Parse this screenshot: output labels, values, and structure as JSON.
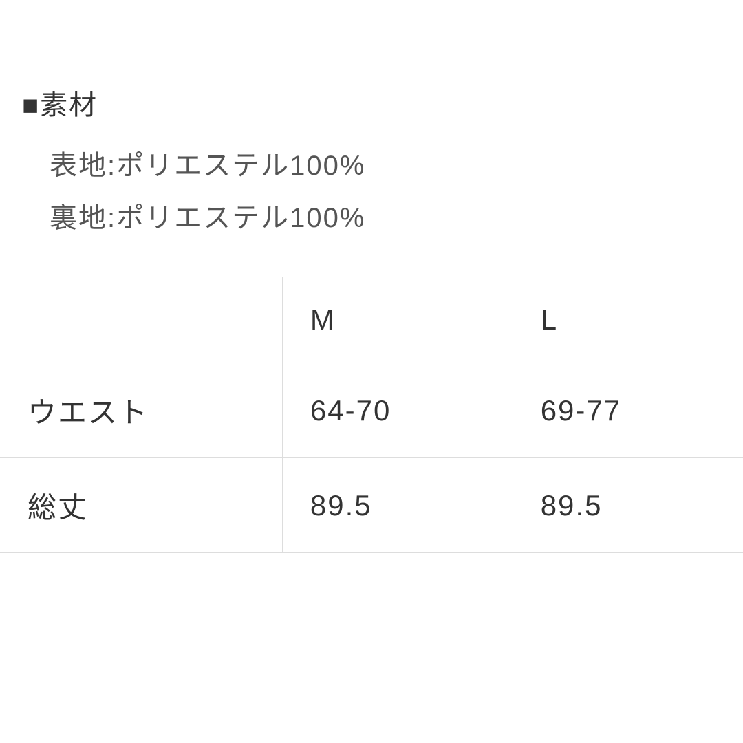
{
  "material": {
    "heading_prefix": "■",
    "heading_text": "素材",
    "lines": [
      "表地:ポリエステル100%",
      "裏地:ポリエステル100%"
    ]
  },
  "size_table": {
    "type": "table",
    "columns": [
      "",
      "M",
      "L"
    ],
    "rows": [
      {
        "label": "ウエスト",
        "values": [
          "64-70",
          "69-77"
        ]
      },
      {
        "label": "総丈",
        "values": [
          "89.5",
          "89.5"
        ]
      }
    ],
    "border_color": "#dddddd",
    "background_color": "#ffffff",
    "text_color": "#333333",
    "cell_fontsize": 42,
    "column_widths": [
      "38%",
      "31%",
      "31%"
    ]
  },
  "styling": {
    "page_background": "#ffffff",
    "heading_color": "#333333",
    "body_text_color": "#555555",
    "heading_fontsize": 40,
    "body_fontsize": 40
  }
}
